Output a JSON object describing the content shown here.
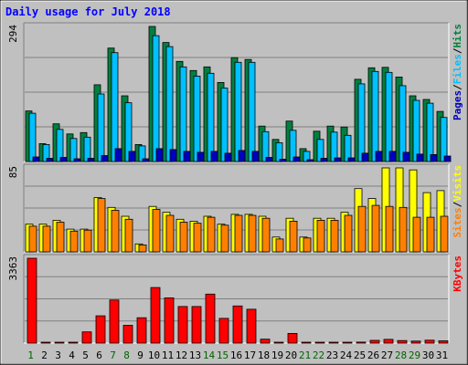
{
  "chart_data": [
    {
      "type": "bar",
      "title": "Daily usage for July 2018",
      "categories": [
        "1",
        "2",
        "3",
        "4",
        "5",
        "6",
        "7",
        "8",
        "9",
        "10",
        "11",
        "12",
        "13",
        "14",
        "15",
        "16",
        "17",
        "18",
        "19",
        "20",
        "21",
        "22",
        "23",
        "24",
        "25",
        "26",
        "27",
        "28",
        "29",
        "30",
        "31"
      ],
      "weekend_days": [
        "1",
        "7",
        "8",
        "14",
        "15",
        "21",
        "22",
        "28",
        "29"
      ],
      "colors": {
        "hits": "#008040",
        "files": "#00c0ff",
        "pages": "#0000c0",
        "sites": "#ff8000",
        "visits": "#ffff00",
        "kbytes": "#ff0000",
        "weekday_label": "#000000",
        "weekend_label": "#006400"
      },
      "panels": [
        {
          "id": "hits-files-pages",
          "y_max_label": "294",
          "ylim": [
            0,
            294
          ],
          "legend": [
            "Pages",
            "Files",
            "Hits"
          ],
          "series": [
            {
              "name": "Hits",
              "values": [
                110,
                39,
                82,
                60,
                63,
                167,
                247,
                143,
                37,
                294,
                259,
                218,
                198,
                206,
                172,
                226,
                222,
                77,
                48,
                88,
                28,
                66,
                77,
                75,
                179,
                204,
                205,
                184,
                143,
                135,
                109
              ]
            },
            {
              "name": "Files",
              "values": [
                105,
                37,
                70,
                50,
                53,
                147,
                237,
                128,
                34,
                274,
                250,
                206,
                186,
                192,
                160,
                216,
                216,
                65,
                41,
                68,
                22,
                48,
                64,
                57,
                169,
                196,
                194,
                165,
                133,
                127,
                96
              ]
            },
            {
              "name": "Pages",
              "values": [
                10,
                7,
                9,
                6,
                7,
                13,
                28,
                22,
                6,
                28,
                26,
                22,
                20,
                22,
                18,
                24,
                22,
                9,
                5,
                10,
                4,
                7,
                8,
                8,
                18,
                22,
                22,
                20,
                16,
                15,
                12
              ]
            }
          ]
        },
        {
          "id": "visits-sites",
          "y_max_label": "85",
          "ylim": [
            0,
            85
          ],
          "legend": [
            "Sites",
            "Visits"
          ],
          "series": [
            {
              "name": "Visits",
              "values": [
                28,
                28,
                32,
                23,
                23,
                55,
                45,
                36,
                8,
                46,
                40,
                33,
                31,
                36,
                28,
                38,
                38,
                36,
                15,
                34,
                15,
                34,
                34,
                40,
                64,
                54,
                85,
                85,
                83,
                60,
                62
              ]
            },
            {
              "name": "Sites",
              "values": [
                26,
                26,
                30,
                21,
                22,
                54,
                42,
                33,
                7,
                43,
                37,
                30,
                29,
                35,
                27,
                37,
                37,
                34,
                13,
                31,
                14,
                32,
                32,
                37,
                46,
                47,
                46,
                45,
                35,
                35,
                36
              ]
            }
          ]
        },
        {
          "id": "kbytes",
          "y_max_label": "3363",
          "ylim": [
            0,
            3363
          ],
          "legend": [
            "KBytes"
          ],
          "series": [
            {
              "name": "KBytes",
              "values": [
                3363,
                20,
                20,
                20,
                444,
                1080,
                1708,
                706,
                1005,
                2202,
                1793,
                1451,
                1451,
                1943,
                979,
                1472,
                1340,
                154,
                20,
                385,
                20,
                20,
                20,
                20,
                40,
                110,
                150,
                100,
                80,
                115,
                90
              ]
            }
          ]
        }
      ]
    }
  ]
}
